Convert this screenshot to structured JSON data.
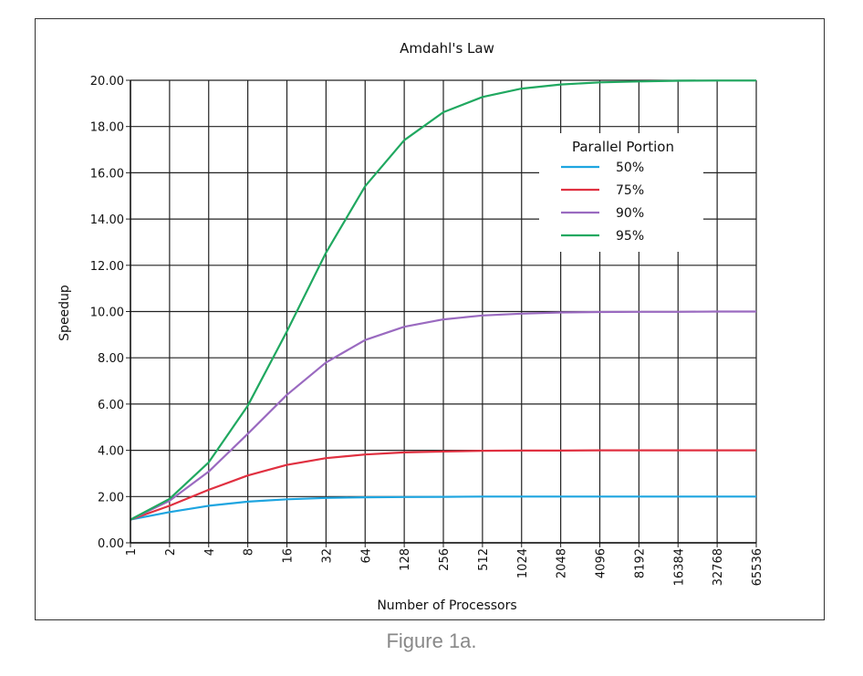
{
  "caption": "Figure 1a.",
  "chart_data": {
    "type": "line",
    "title": "Amdahl's Law",
    "xlabel": "Number of Processors",
    "ylabel": "Speedup",
    "x": [
      "1",
      "2",
      "4",
      "8",
      "16",
      "32",
      "64",
      "128",
      "256",
      "512",
      "1024",
      "2048",
      "4096",
      "8192",
      "16384",
      "32768",
      "65536"
    ],
    "x_scale": "log2",
    "ylim": [
      0,
      20
    ],
    "y_ticks": [
      "0.00",
      "2.00",
      "4.00",
      "6.00",
      "8.00",
      "10.00",
      "12.00",
      "14.00",
      "16.00",
      "18.00",
      "20.00"
    ],
    "grid": true,
    "legend": {
      "title": "Parallel Portion",
      "placement": "top-right"
    },
    "series": [
      {
        "name": "50%",
        "color": "#1ea5e0",
        "values": [
          1.0,
          1.33,
          1.6,
          1.78,
          1.88,
          1.94,
          1.97,
          1.98,
          1.99,
          2.0,
          2.0,
          2.0,
          2.0,
          2.0,
          2.0,
          2.0,
          2.0
        ]
      },
      {
        "name": "75%",
        "color": "#e03040",
        "values": [
          1.0,
          1.6,
          2.29,
          2.91,
          3.37,
          3.66,
          3.82,
          3.91,
          3.95,
          3.98,
          3.99,
          3.99,
          4.0,
          4.0,
          4.0,
          4.0,
          4.0
        ]
      },
      {
        "name": "90%",
        "color": "#9a6ac0",
        "values": [
          1.0,
          1.82,
          3.08,
          4.71,
          6.4,
          7.8,
          8.77,
          9.34,
          9.66,
          9.83,
          9.91,
          9.96,
          9.98,
          9.99,
          9.99,
          10.0,
          10.0
        ]
      },
      {
        "name": "95%",
        "color": "#20a860",
        "values": [
          1.0,
          1.9,
          3.48,
          5.93,
          9.14,
          12.55,
          15.42,
          17.41,
          18.62,
          19.28,
          19.64,
          19.82,
          19.91,
          19.95,
          19.98,
          19.99,
          19.99
        ]
      }
    ]
  }
}
